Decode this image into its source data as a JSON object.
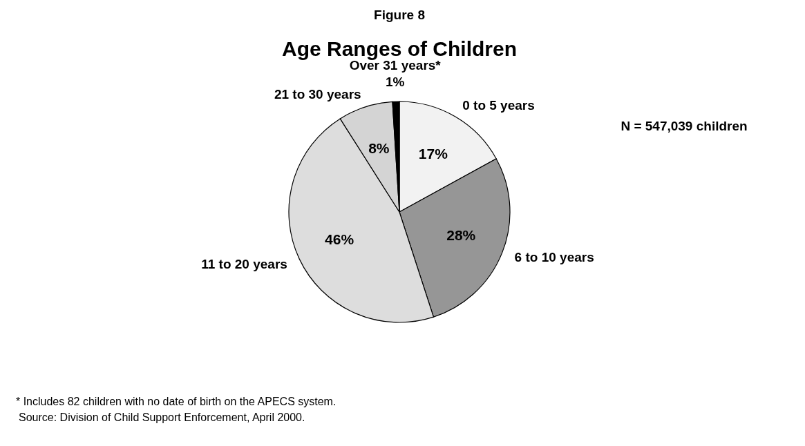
{
  "chart_data": {
    "type": "pie",
    "title": "Age Ranges of Children",
    "categories": [
      "0 to 5 years",
      "6 to 10 years",
      "11 to 20 years",
      "21 to 30 years",
      "Over 31 years*"
    ],
    "values": [
      17,
      28,
      46,
      8,
      1
    ],
    "colors": [
      "#f2f2f2",
      "#969696",
      "#dddddd",
      "#d4d4d4",
      "#000000"
    ],
    "value_labels": [
      "17%",
      "28%",
      "46%",
      "8%",
      "1%"
    ],
    "annotations": [
      "Figure 8",
      "N = 547,039 children",
      "* Includes 82 children with no date of birth on the APECS system.",
      "Source: Division of Child Support Enforcement, April 2000."
    ]
  }
}
